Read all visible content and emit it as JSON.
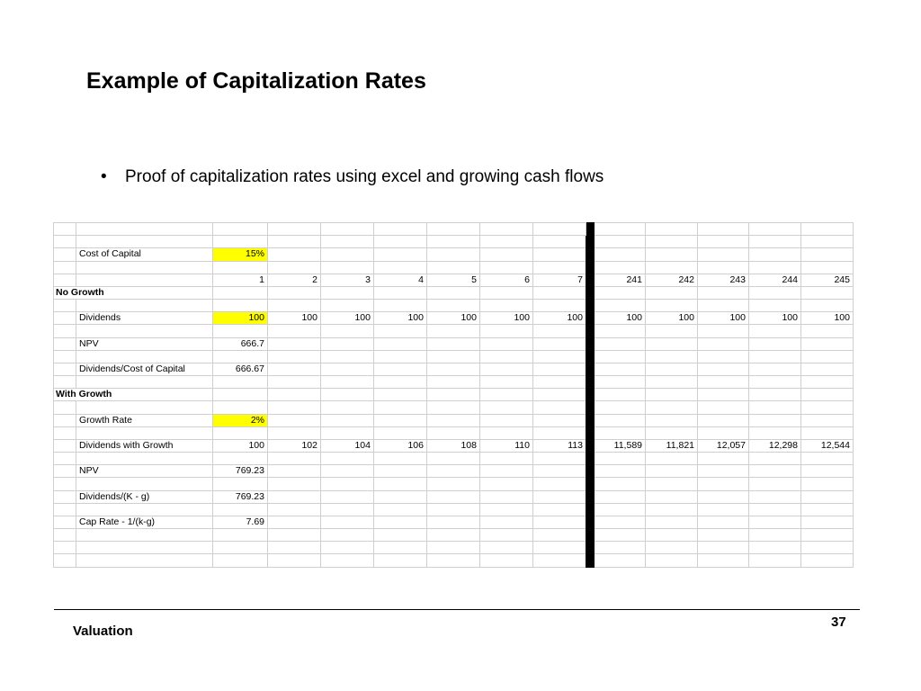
{
  "slide": {
    "title": "Example of Capitalization Rates",
    "bullet": "Proof of capitalization rates using excel and growing cash flows"
  },
  "footer": {
    "left_text": "Valuation",
    "page_number": "37"
  },
  "spreadsheet": {
    "highlight_color": "#ffff00",
    "rows": [
      {
        "a": "",
        "label": "",
        "cells": [
          "",
          "",
          "",
          "",
          "",
          "",
          "",
          "",
          "",
          "",
          "",
          ""
        ]
      },
      {
        "a": "",
        "label": "",
        "cells": [
          "",
          "",
          "",
          "",
          "",
          "",
          "",
          "",
          "",
          "",
          "",
          ""
        ]
      },
      {
        "a": "",
        "label": "Cost of Capital",
        "cells": [
          "15%",
          "",
          "",
          "",
          "",
          "",
          "",
          "",
          "",
          "",
          "",
          ""
        ],
        "highlight": true
      },
      {
        "a": "",
        "label": "",
        "cells": [
          "",
          "",
          "",
          "",
          "",
          "",
          "",
          "",
          "",
          "",
          "",
          ""
        ]
      },
      {
        "a": "",
        "label": "",
        "cells": [
          "1",
          "2",
          "3",
          "4",
          "5",
          "6",
          "7",
          "241",
          "242",
          "243",
          "244",
          "245"
        ]
      },
      {
        "a": "No Growth",
        "label": "",
        "cells": [
          "",
          "",
          "",
          "",
          "",
          "",
          "",
          "",
          "",
          "",
          "",
          ""
        ],
        "section": true
      },
      {
        "a": "",
        "label": "",
        "cells": [
          "",
          "",
          "",
          "",
          "",
          "",
          "",
          "",
          "",
          "",
          "",
          ""
        ]
      },
      {
        "a": "",
        "label": "Dividends",
        "cells": [
          "100",
          "100",
          "100",
          "100",
          "100",
          "100",
          "100",
          "100",
          "100",
          "100",
          "100",
          "100"
        ],
        "highlight": true
      },
      {
        "a": "",
        "label": "",
        "cells": [
          "",
          "",
          "",
          "",
          "",
          "",
          "",
          "",
          "",
          "",
          "",
          ""
        ]
      },
      {
        "a": "",
        "label": "NPV",
        "cells": [
          "666.7",
          "",
          "",
          "",
          "",
          "",
          "",
          "",
          "",
          "",
          "",
          ""
        ]
      },
      {
        "a": "",
        "label": "",
        "cells": [
          "",
          "",
          "",
          "",
          "",
          "",
          "",
          "",
          "",
          "",
          "",
          ""
        ]
      },
      {
        "a": "",
        "label": "Dividends/Cost of Capital",
        "cells": [
          "666.67",
          "",
          "",
          "",
          "",
          "",
          "",
          "",
          "",
          "",
          "",
          ""
        ]
      },
      {
        "a": "",
        "label": "",
        "cells": [
          "",
          "",
          "",
          "",
          "",
          "",
          "",
          "",
          "",
          "",
          "",
          ""
        ]
      },
      {
        "a": "With Growth",
        "label": "",
        "cells": [
          "",
          "",
          "",
          "",
          "",
          "",
          "",
          "",
          "",
          "",
          "",
          ""
        ],
        "section": true
      },
      {
        "a": "",
        "label": "",
        "cells": [
          "",
          "",
          "",
          "",
          "",
          "",
          "",
          "",
          "",
          "",
          "",
          ""
        ]
      },
      {
        "a": "",
        "label": "Growth Rate",
        "cells": [
          "2%",
          "",
          "",
          "",
          "",
          "",
          "",
          "",
          "",
          "",
          "",
          ""
        ],
        "highlight": true
      },
      {
        "a": "",
        "label": "",
        "cells": [
          "",
          "",
          "",
          "",
          "",
          "",
          "",
          "",
          "",
          "",
          "",
          ""
        ]
      },
      {
        "a": "",
        "label": "Dividends with Growth",
        "cells": [
          "100",
          "102",
          "104",
          "106",
          "108",
          "110",
          "113",
          "11,589",
          "11,821",
          "12,057",
          "12,298",
          "12,544"
        ]
      },
      {
        "a": "",
        "label": "",
        "cells": [
          "",
          "",
          "",
          "",
          "",
          "",
          "",
          "",
          "",
          "",
          "",
          ""
        ]
      },
      {
        "a": "",
        "label": "NPV",
        "cells": [
          "769.23",
          "",
          "",
          "",
          "",
          "",
          "",
          "",
          "",
          "",
          "",
          ""
        ]
      },
      {
        "a": "",
        "label": "",
        "cells": [
          "",
          "",
          "",
          "",
          "",
          "",
          "",
          "",
          "",
          "",
          "",
          ""
        ]
      },
      {
        "a": "",
        "label": "Dividends/(K - g)",
        "cells": [
          "769.23",
          "",
          "",
          "",
          "",
          "",
          "",
          "",
          "",
          "",
          "",
          ""
        ]
      },
      {
        "a": "",
        "label": "",
        "cells": [
          "",
          "",
          "",
          "",
          "",
          "",
          "",
          "",
          "",
          "",
          "",
          ""
        ]
      },
      {
        "a": "",
        "label": "Cap Rate - 1/(k-g)",
        "cells": [
          "7.69",
          "",
          "",
          "",
          "",
          "",
          "",
          "",
          "",
          "",
          "",
          ""
        ]
      },
      {
        "a": "",
        "label": "",
        "cells": [
          "",
          "",
          "",
          "",
          "",
          "",
          "",
          "",
          "",
          "",
          "",
          ""
        ]
      },
      {
        "a": "",
        "label": "",
        "cells": [
          "",
          "",
          "",
          "",
          "",
          "",
          "",
          "",
          "",
          "",
          "",
          ""
        ]
      },
      {
        "a": "",
        "label": "",
        "cells": [
          "",
          "",
          "",
          "",
          "",
          "",
          "",
          "",
          "",
          "",
          "",
          ""
        ]
      }
    ]
  }
}
